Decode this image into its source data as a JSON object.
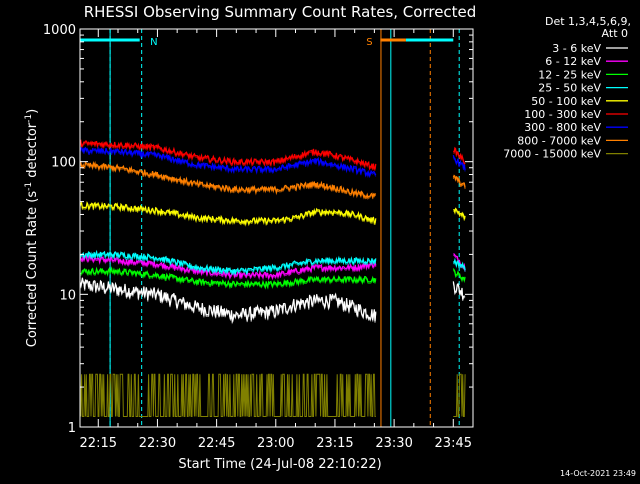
{
  "chart_data": {
    "type": "line",
    "title": "RHESSI Observing Summary Count Rates, Corrected",
    "xlabel": "Start Time (24-Jul-08 22:10:22)",
    "ylabel": "Corrected Count Rate (s⁻¹ detector⁻¹)",
    "ylabel_main": "Corrected Count Rate (s",
    "ylabel_sup1": "-1",
    "ylabel_mid": " detector",
    "ylabel_sup2": "-1",
    "ylabel_end": ")",
    "y_scale": "log",
    "ylim": [
      1,
      1000
    ],
    "xlim": [
      "22:10:22",
      "23:50:00"
    ],
    "x_ticks": [
      "22:15",
      "22:30",
      "22:45",
      "23:00",
      "23:15",
      "23:30",
      "23:45"
    ],
    "y_ticks": [
      "1",
      "10",
      "100",
      "1000"
    ],
    "legend_header": [
      "Det 1,3,4,5,6,9,",
      "Att 0"
    ],
    "legend_position": "right",
    "timestamp": "14-Oct-2021 23:49",
    "flags": [
      {
        "label": "N",
        "color": "#00ffff",
        "segments": [
          [
            "22:10:22",
            "22:18:00"
          ],
          [
            "22:18:00",
            "22:25:30"
          ]
        ]
      },
      {
        "label": "S",
        "color": "#ff8000",
        "segments": [
          [
            "23:26:30",
            "23:33:00"
          ]
        ]
      },
      {
        "label": "",
        "color": "#00ffff",
        "segments": [
          [
            "23:33:00",
            "23:45:00"
          ]
        ]
      }
    ],
    "marker_lines": [
      {
        "time": "22:10:22",
        "color": "#00ffff",
        "style": "solid"
      },
      {
        "time": "22:18:00",
        "color": "#00ffff",
        "style": "solid"
      },
      {
        "time": "22:18:00",
        "color": "#00ffff",
        "style": "dashed"
      },
      {
        "time": "22:26:00",
        "color": "#00ffff",
        "style": "dashed"
      },
      {
        "time": "23:26:40",
        "color": "#ff8000",
        "style": "solid"
      },
      {
        "time": "23:29:10",
        "color": "#00ffff",
        "style": "solid"
      },
      {
        "time": "23:39:10",
        "color": "#ff8000",
        "style": "dashed"
      },
      {
        "time": "23:46:30",
        "color": "#00ffff",
        "style": "dashed"
      }
    ],
    "gap": [
      "23:25:30",
      "23:45:00"
    ],
    "series": [
      {
        "name": "3 - 6 keV",
        "color": "#ffffff",
        "x": [
          "22:10:22",
          "22:20",
          "22:30",
          "22:40",
          "22:50",
          "23:00",
          "23:05",
          "23:10",
          "23:15",
          "23:20",
          "23:25",
          "23:45",
          "23:48"
        ],
        "y": [
          12,
          11,
          10,
          8,
          7,
          7.5,
          8.5,
          9,
          9,
          8,
          7,
          12,
          10
        ]
      },
      {
        "name": "6 - 12 keV",
        "color": "#ff00ff",
        "x": [
          "22:10:22",
          "22:20",
          "22:30",
          "22:40",
          "22:50",
          "23:00",
          "23:05",
          "23:10",
          "23:15",
          "23:20",
          "23:25",
          "23:45",
          "23:48"
        ],
        "y": [
          19,
          18,
          17,
          15,
          14,
          14,
          15,
          16,
          16,
          16,
          17,
          20,
          16
        ]
      },
      {
        "name": "12 - 25 keV",
        "color": "#00ff00",
        "x": [
          "22:10:22",
          "22:20",
          "22:30",
          "22:40",
          "22:50",
          "23:00",
          "23:05",
          "23:10",
          "23:15",
          "23:20",
          "23:25",
          "23:45",
          "23:48"
        ],
        "y": [
          15,
          15,
          14,
          12.5,
          12,
          12,
          12.5,
          13,
          13,
          13,
          13,
          15,
          13
        ]
      },
      {
        "name": "25 - 50 keV",
        "color": "#00ffff",
        "x": [
          "22:10:22",
          "22:20",
          "22:30",
          "22:40",
          "22:50",
          "23:00",
          "23:05",
          "23:10",
          "23:15",
          "23:20",
          "23:25",
          "23:45",
          "23:48"
        ],
        "y": [
          20,
          20,
          19,
          16,
          15,
          16,
          17,
          18,
          18,
          18,
          18,
          18,
          16
        ]
      },
      {
        "name": "50 - 100 keV",
        "color": "#ffff00",
        "x": [
          "22:10:22",
          "22:20",
          "22:30",
          "22:40",
          "22:50",
          "23:00",
          "23:05",
          "23:10",
          "23:15",
          "23:20",
          "23:25",
          "23:45",
          "23:48"
        ],
        "y": [
          47,
          46,
          43,
          38,
          36,
          36,
          38,
          42,
          42,
          40,
          36,
          45,
          38
        ]
      },
      {
        "name": "100 - 300 keV",
        "color": "#ff0000",
        "x": [
          "22:10:22",
          "22:20",
          "22:30",
          "22:40",
          "22:50",
          "23:00",
          "23:05",
          "23:10",
          "23:15",
          "23:20",
          "23:25",
          "23:45",
          "23:48"
        ],
        "y": [
          138,
          135,
          128,
          108,
          100,
          100,
          110,
          120,
          112,
          102,
          92,
          125,
          100
        ]
      },
      {
        "name": "300 - 800 keV",
        "color": "#0000ff",
        "x": [
          "22:10:22",
          "22:20",
          "22:30",
          "22:40",
          "22:50",
          "23:00",
          "23:05",
          "23:10",
          "23:15",
          "23:20",
          "23:25",
          "23:45",
          "23:48"
        ],
        "y": [
          122,
          120,
          112,
          95,
          88,
          88,
          95,
          102,
          95,
          88,
          80,
          108,
          90
        ]
      },
      {
        "name": "800 - 7000 keV",
        "color": "#ff8000",
        "x": [
          "22:10:22",
          "22:20",
          "22:30",
          "22:40",
          "22:50",
          "23:00",
          "23:05",
          "23:10",
          "23:15",
          "23:20",
          "23:25",
          "23:45",
          "23:48"
        ],
        "y": [
          95,
          90,
          80,
          68,
          62,
          62,
          65,
          68,
          64,
          58,
          55,
          78,
          65
        ]
      },
      {
        "name": "7000 - 15000 keV",
        "color": "#808000",
        "x": [
          "22:10:22",
          "22:20",
          "22:30",
          "22:40",
          "22:50",
          "23:00",
          "23:05",
          "23:10",
          "23:15",
          "23:20",
          "23:25",
          "23:45",
          "23:48"
        ],
        "y": [
          1.5,
          1.8,
          1.5,
          1.2,
          1,
          1.5,
          2.5,
          2.5,
          2,
          1.5,
          1,
          1.5,
          1
        ]
      }
    ]
  }
}
